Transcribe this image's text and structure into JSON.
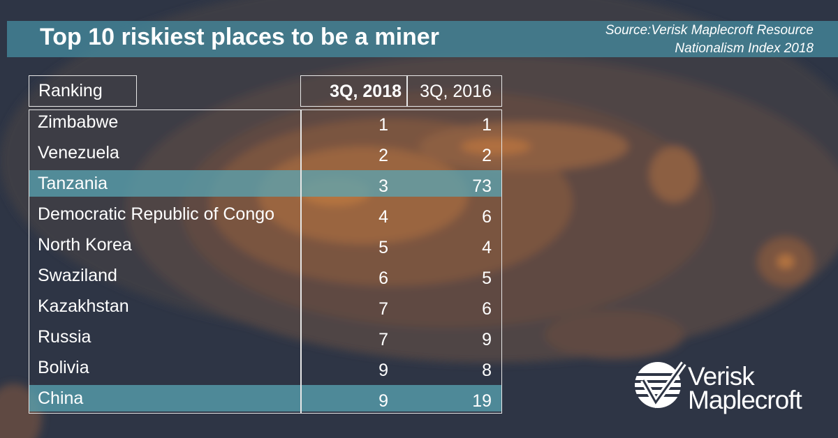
{
  "header": {
    "title": "Top 10 riskiest places to be a miner",
    "source_lines": [
      "Source:Verisk Maplecroft Resource",
      "Nationalism Index 2018"
    ]
  },
  "table": {
    "columns": [
      "Ranking",
      "3Q, 2018",
      "3Q, 2016"
    ],
    "rows": [
      {
        "country": "Zimbabwe",
        "q3_2018": 1,
        "q3_2016": 1,
        "highlight": false
      },
      {
        "country": "Venezuela",
        "q3_2018": 2,
        "q3_2016": 2,
        "highlight": false
      },
      {
        "country": "Tanzania",
        "q3_2018": 3,
        "q3_2016": 73,
        "highlight": true
      },
      {
        "country": "Democratic Republic of Congo",
        "q3_2018": 4,
        "q3_2016": 6,
        "highlight": false
      },
      {
        "country": "North Korea",
        "q3_2018": 5,
        "q3_2016": 4,
        "highlight": false
      },
      {
        "country": "Swaziland",
        "q3_2018": 6,
        "q3_2016": 5,
        "highlight": false
      },
      {
        "country": "Kazakhstan",
        "q3_2018": 7,
        "q3_2016": 6,
        "highlight": false
      },
      {
        "country": "Russia",
        "q3_2018": 7,
        "q3_2016": 9,
        "highlight": false
      },
      {
        "country": "Bolivia",
        "q3_2018": 9,
        "q3_2016": 8,
        "highlight": false
      },
      {
        "country": "China",
        "q3_2018": 9,
        "q3_2016": 19,
        "highlight": true
      }
    ]
  },
  "logo": {
    "line1": "Verisk",
    "line2": "Maplecroft"
  }
}
